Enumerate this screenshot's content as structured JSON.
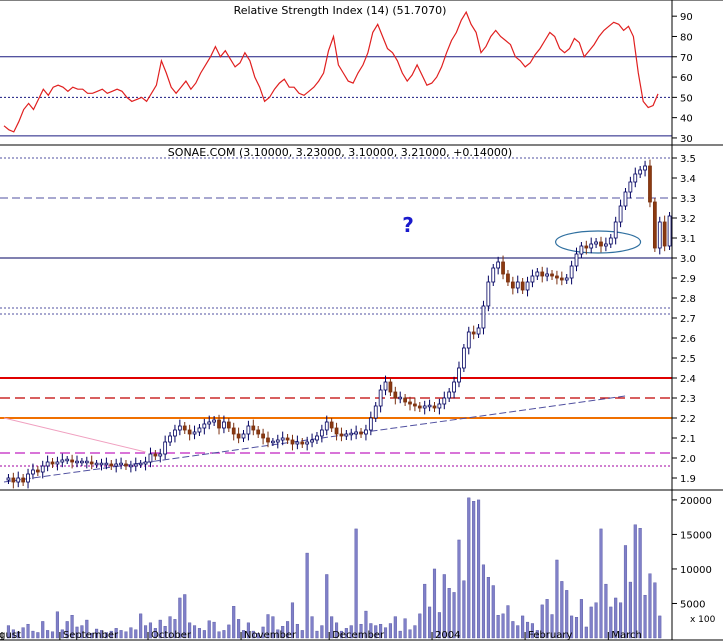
{
  "chart_data": [
    {
      "type": "line",
      "title": "Relative Strength Index (14) (51.7070)",
      "ylim": [
        28,
        96
      ],
      "yticks": [
        30,
        40,
        50,
        60,
        70,
        80,
        90
      ],
      "reference_lines": [
        {
          "value": 70,
          "style": "solid"
        },
        {
          "value": 50,
          "style": "dotted"
        },
        {
          "value": 31,
          "style": "solid"
        }
      ],
      "series": [
        {
          "values": [
            36,
            34,
            33,
            38,
            44,
            47,
            44,
            49,
            54,
            51,
            55,
            56,
            55,
            53,
            55,
            54,
            54,
            52,
            52,
            53,
            54,
            52,
            53,
            54,
            53,
            50,
            48,
            49,
            50,
            48,
            52,
            56,
            68,
            62,
            55,
            52,
            55,
            58,
            54,
            57,
            62,
            66,
            70,
            75,
            70,
            73,
            69,
            65,
            67,
            72,
            68,
            60,
            55,
            48,
            50,
            54,
            57,
            59,
            55,
            55,
            52,
            51,
            53,
            55,
            58,
            62,
            73,
            80,
            66,
            62,
            58,
            57,
            62,
            66,
            72,
            82,
            86,
            80,
            74,
            72,
            68,
            62,
            58,
            61,
            66,
            61,
            56,
            57,
            60,
            65,
            72,
            78,
            82,
            88,
            92,
            86,
            82,
            72,
            75,
            80,
            83,
            80,
            78,
            76,
            70,
            68,
            65,
            67,
            71,
            74,
            78,
            82,
            80,
            74,
            72,
            74,
            79,
            77,
            70,
            73,
            76,
            80,
            83,
            85,
            87,
            86,
            83,
            85,
            80,
            62,
            48,
            45,
            46,
            51.7
          ]
        }
      ]
    },
    {
      "type": "candlestick",
      "title": "SONAE.COM (3.10000, 3.23000, 3.10000, 3.21000, +0.14000)",
      "annotation": "?",
      "ylim": [
        1.85,
        3.55
      ],
      "yticks": [
        "1.9",
        "2.0",
        "2.1",
        "2.2",
        "2.3",
        "2.4",
        "2.5",
        "2.6",
        "2.7",
        "2.8",
        "2.9",
        "3.0",
        "3.1",
        "3.2",
        "3.3",
        "3.4",
        "3.5"
      ],
      "x_labels": [
        "August",
        "September",
        "October",
        "November",
        "December",
        "2004",
        "February",
        "March"
      ],
      "close": [
        1.9,
        1.88,
        1.9,
        1.88,
        1.92,
        1.94,
        1.93,
        1.96,
        1.98,
        1.97,
        1.98,
        1.99,
        1.99,
        1.98,
        1.98,
        1.98,
        1.98,
        1.97,
        1.97,
        1.97,
        1.97,
        1.96,
        1.97,
        1.97,
        1.96,
        1.96,
        1.97,
        1.97,
        1.98,
        2.02,
        2.01,
        2.02,
        2.08,
        2.11,
        2.14,
        2.16,
        2.14,
        2.12,
        2.13,
        2.15,
        2.17,
        2.18,
        2.19,
        2.15,
        2.18,
        2.15,
        2.12,
        2.1,
        2.12,
        2.16,
        2.14,
        2.12,
        2.1,
        2.08,
        2.08,
        2.09,
        2.1,
        2.09,
        2.07,
        2.08,
        2.07,
        2.08,
        2.09,
        2.11,
        2.14,
        2.18,
        2.15,
        2.12,
        2.11,
        2.12,
        2.12,
        2.13,
        2.12,
        2.14,
        2.2,
        2.26,
        2.34,
        2.38,
        2.33,
        2.3,
        2.3,
        2.28,
        2.27,
        2.26,
        2.25,
        2.26,
        2.26,
        2.25,
        2.27,
        2.3,
        2.33,
        2.38,
        2.45,
        2.55,
        2.63,
        2.62,
        2.65,
        2.76,
        2.88,
        2.95,
        2.98,
        2.92,
        2.88,
        2.85,
        2.88,
        2.84,
        2.88,
        2.91,
        2.93,
        2.91,
        2.92,
        2.91,
        2.9,
        2.89,
        2.9,
        2.96,
        3.02,
        3.06,
        3.05,
        3.07,
        3.08,
        3.06,
        3.07,
        3.1,
        3.18,
        3.26,
        3.33,
        3.38,
        3.42,
        3.44,
        3.46,
        3.28,
        3.05,
        3.18,
        3.06,
        3.21
      ]
    },
    {
      "type": "bar",
      "title": "",
      "ylim": [
        0,
        21000
      ],
      "yticks": [
        "5000",
        "10000",
        "15000",
        "20000"
      ],
      "units_label": "x 100",
      "values": [
        1800,
        1200,
        900,
        1500,
        2000,
        1000,
        800,
        2400,
        1100,
        900,
        3800,
        1200,
        2400,
        3300,
        1600,
        1800,
        2600,
        700,
        1300,
        1100,
        800,
        1000,
        1400,
        1100,
        900,
        1500,
        1200,
        3500,
        1800,
        2200,
        1400,
        2600,
        1700,
        3100,
        2700,
        5800,
        6300,
        2200,
        1800,
        1400,
        1100,
        2500,
        2300,
        900,
        1100,
        1900,
        4600,
        2700,
        1100,
        2200,
        1000,
        700,
        1600,
        3400,
        3100,
        1200,
        1700,
        2400,
        5100,
        2000,
        1100,
        12300,
        3100,
        1000,
        1800,
        9200,
        3100,
        2200,
        1000,
        1400,
        1800,
        15800,
        2000,
        3900,
        2100,
        1800,
        2000,
        1500,
        2100,
        3100,
        1000,
        2800,
        1200,
        1800,
        3500,
        7800,
        4500,
        10000,
        3700,
        9200,
        7200,
        6600,
        14200,
        8300,
        20300,
        19800,
        20000,
        10600,
        8800,
        7600,
        3300,
        3500,
        4700,
        2400,
        1800,
        3200,
        2300,
        2100,
        1100,
        4800,
        5600,
        3400,
        11300,
        8200,
        6900,
        3200,
        3000,
        5600,
        1600,
        4500,
        5100,
        15800,
        7800,
        4500,
        5800,
        5100,
        13400,
        8100,
        16400,
        15900,
        6200,
        9300,
        8000,
        3200
      ]
    }
  ]
}
